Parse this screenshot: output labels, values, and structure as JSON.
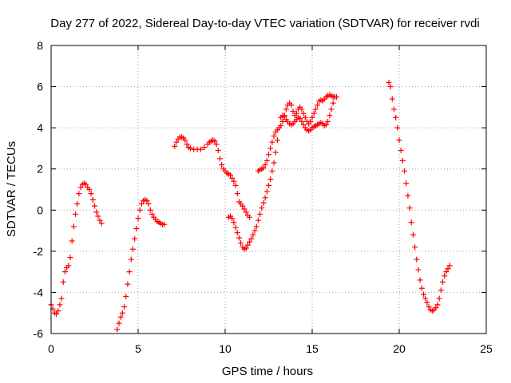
{
  "chart_data": {
    "type": "scatter",
    "title": "Day 277 of 2022, Sidereal Day-to-day VTEC variation (SDTVAR) for receiver rvdi",
    "xlabel": "GPS time / hours",
    "ylabel": "SDTVAR / TECUs",
    "xlim": [
      0,
      25
    ],
    "ylim": [
      -6,
      8
    ],
    "xticks": [
      0,
      5,
      10,
      15,
      20,
      25
    ],
    "yticks": [
      -6,
      -4,
      -2,
      0,
      2,
      4,
      6,
      8
    ],
    "grid": true,
    "marker": "plus",
    "color": "#ff0000",
    "series": [
      {
        "segments": [
          [
            [
              0.0,
              -4.6
            ],
            [
              0.1,
              -4.8
            ],
            [
              0.2,
              -5.0
            ],
            [
              0.3,
              -5.05
            ],
            [
              0.4,
              -4.9
            ],
            [
              0.5,
              -4.6
            ],
            [
              0.6,
              -4.3
            ],
            [
              0.7,
              -3.5
            ],
            [
              0.8,
              -3.0
            ],
            [
              0.9,
              -2.8
            ],
            [
              1.0,
              -2.7
            ],
            [
              1.1,
              -2.3
            ],
            [
              1.2,
              -1.5
            ],
            [
              1.3,
              -0.8
            ],
            [
              1.4,
              -0.2
            ],
            [
              1.5,
              0.3
            ],
            [
              1.6,
              0.8
            ],
            [
              1.7,
              1.1
            ],
            [
              1.8,
              1.25
            ],
            [
              1.9,
              1.3
            ],
            [
              2.0,
              1.25
            ],
            [
              2.1,
              1.1
            ],
            [
              2.2,
              1.0
            ],
            [
              2.3,
              0.8
            ],
            [
              2.4,
              0.5
            ],
            [
              2.5,
              0.2
            ],
            [
              2.6,
              -0.1
            ],
            [
              2.7,
              -0.3
            ],
            [
              2.8,
              -0.5
            ],
            [
              2.9,
              -0.65
            ]
          ],
          [
            [
              3.8,
              -5.8
            ],
            [
              3.9,
              -5.5
            ],
            [
              4.0,
              -5.2
            ],
            [
              4.1,
              -5.0
            ],
            [
              4.2,
              -4.7
            ],
            [
              4.3,
              -4.2
            ],
            [
              4.4,
              -3.6
            ],
            [
              4.5,
              -3.0
            ],
            [
              4.6,
              -2.4
            ],
            [
              4.7,
              -1.9
            ],
            [
              4.8,
              -1.4
            ],
            [
              4.9,
              -0.9
            ],
            [
              5.0,
              -0.4
            ],
            [
              5.1,
              0.0
            ],
            [
              5.2,
              0.3
            ],
            [
              5.3,
              0.45
            ],
            [
              5.4,
              0.5
            ],
            [
              5.5,
              0.45
            ],
            [
              5.6,
              0.3
            ],
            [
              5.7,
              0.0
            ],
            [
              5.8,
              -0.2
            ],
            [
              5.9,
              -0.35
            ],
            [
              6.0,
              -0.45
            ],
            [
              6.1,
              -0.55
            ],
            [
              6.2,
              -0.6
            ],
            [
              6.3,
              -0.65
            ],
            [
              6.4,
              -0.7
            ],
            [
              6.5,
              -0.7
            ]
          ],
          [
            [
              7.1,
              3.1
            ],
            [
              7.2,
              3.3
            ],
            [
              7.3,
              3.45
            ],
            [
              7.4,
              3.55
            ],
            [
              7.5,
              3.55
            ],
            [
              7.6,
              3.5
            ],
            [
              7.7,
              3.4
            ],
            [
              7.8,
              3.2
            ],
            [
              7.9,
              3.05
            ],
            [
              8.0,
              3.0
            ],
            [
              8.2,
              2.95
            ],
            [
              8.4,
              2.95
            ],
            [
              8.6,
              2.95
            ],
            [
              8.8,
              3.05
            ],
            [
              9.0,
              3.2
            ],
            [
              9.1,
              3.3
            ],
            [
              9.2,
              3.35
            ],
            [
              9.3,
              3.4
            ],
            [
              9.4,
              3.35
            ],
            [
              9.5,
              3.2
            ],
            [
              9.6,
              2.9
            ],
            [
              9.7,
              2.5
            ],
            [
              9.8,
              2.2
            ],
            [
              9.9,
              2.0
            ],
            [
              10.0,
              1.9
            ],
            [
              10.1,
              1.8
            ],
            [
              10.2,
              1.75
            ],
            [
              10.3,
              1.7
            ],
            [
              10.4,
              1.55
            ],
            [
              10.5,
              1.4
            ],
            [
              10.6,
              1.2
            ],
            [
              10.7,
              0.8
            ],
            [
              10.8,
              0.4
            ],
            [
              10.9,
              0.3
            ],
            [
              11.0,
              0.2
            ],
            [
              11.1,
              0.05
            ],
            [
              11.2,
              -0.1
            ],
            [
              11.3,
              -0.25
            ],
            [
              11.4,
              -0.35
            ]
          ],
          [
            [
              10.2,
              -0.35
            ],
            [
              10.3,
              -0.3
            ],
            [
              10.4,
              -0.4
            ],
            [
              10.5,
              -0.6
            ],
            [
              10.6,
              -0.85
            ],
            [
              10.7,
              -1.1
            ],
            [
              10.8,
              -1.35
            ],
            [
              10.9,
              -1.6
            ],
            [
              11.0,
              -1.8
            ],
            [
              11.1,
              -1.9
            ],
            [
              11.2,
              -1.85
            ],
            [
              11.3,
              -1.7
            ],
            [
              11.4,
              -1.55
            ],
            [
              11.5,
              -1.4
            ],
            [
              11.6,
              -1.2
            ],
            [
              11.7,
              -1.0
            ],
            [
              11.8,
              -0.8
            ],
            [
              11.9,
              -0.5
            ],
            [
              12.0,
              -0.2
            ],
            [
              12.1,
              0.1
            ],
            [
              12.2,
              0.35
            ],
            [
              12.3,
              0.6
            ],
            [
              12.4,
              0.9
            ],
            [
              12.5,
              1.2
            ],
            [
              12.6,
              1.5
            ],
            [
              12.7,
              1.9
            ],
            [
              12.8,
              2.3
            ],
            [
              12.9,
              2.8
            ],
            [
              13.0,
              3.4
            ],
            [
              13.1,
              4.0
            ],
            [
              13.2,
              4.5
            ],
            [
              13.3,
              4.6
            ],
            [
              13.4,
              4.55
            ],
            [
              13.5,
              4.4
            ],
            [
              13.6,
              4.3
            ],
            [
              13.7,
              4.2
            ],
            [
              13.8,
              4.15
            ],
            [
              13.9,
              4.2
            ],
            [
              14.0,
              4.3
            ],
            [
              14.1,
              4.4
            ],
            [
              14.2,
              4.5
            ],
            [
              14.3,
              4.45
            ],
            [
              14.4,
              4.3
            ],
            [
              14.5,
              4.15
            ],
            [
              14.6,
              4.0
            ],
            [
              14.7,
              3.9
            ],
            [
              14.8,
              3.85
            ],
            [
              14.9,
              3.9
            ],
            [
              15.0,
              4.0
            ],
            [
              15.1,
              4.05
            ],
            [
              15.2,
              4.1
            ],
            [
              15.3,
              4.15
            ],
            [
              15.4,
              4.2
            ],
            [
              15.5,
              4.25
            ],
            [
              15.6,
              4.2
            ],
            [
              15.7,
              4.1
            ],
            [
              15.8,
              4.15
            ],
            [
              15.9,
              4.3
            ],
            [
              16.0,
              4.6
            ],
            [
              16.1,
              4.9
            ],
            [
              16.2,
              5.2
            ],
            [
              16.3,
              5.5
            ]
          ],
          [
            [
              11.9,
              1.9
            ],
            [
              12.0,
              1.95
            ],
            [
              12.1,
              2.0
            ],
            [
              12.2,
              2.05
            ],
            [
              12.3,
              2.2
            ],
            [
              12.4,
              2.4
            ],
            [
              12.5,
              2.7
            ],
            [
              12.6,
              3.0
            ],
            [
              12.7,
              3.3
            ],
            [
              12.8,
              3.6
            ],
            [
              12.9,
              3.8
            ],
            [
              13.0,
              3.9
            ],
            [
              13.1,
              4.0
            ],
            [
              13.2,
              4.1
            ],
            [
              13.3,
              4.3
            ],
            [
              13.4,
              4.6
            ],
            [
              13.5,
              4.9
            ],
            [
              13.6,
              5.1
            ],
            [
              13.7,
              5.2
            ],
            [
              13.8,
              5.1
            ],
            [
              13.9,
              4.8
            ],
            [
              14.0,
              4.6
            ],
            [
              14.1,
              4.7
            ],
            [
              14.2,
              4.9
            ],
            [
              14.3,
              5.0
            ],
            [
              14.4,
              4.9
            ],
            [
              14.5,
              4.7
            ],
            [
              14.6,
              4.5
            ],
            [
              14.7,
              4.3
            ],
            [
              14.8,
              4.2
            ],
            [
              14.9,
              4.3
            ],
            [
              15.0,
              4.5
            ],
            [
              15.1,
              4.7
            ],
            [
              15.2,
              4.9
            ],
            [
              15.3,
              5.1
            ],
            [
              15.4,
              5.3
            ],
            [
              15.5,
              5.35
            ],
            [
              15.6,
              5.3
            ],
            [
              15.7,
              5.4
            ],
            [
              15.8,
              5.5
            ],
            [
              15.9,
              5.55
            ],
            [
              16.0,
              5.6
            ],
            [
              16.1,
              5.55
            ],
            [
              16.2,
              5.5
            ],
            [
              16.3,
              5.5
            ],
            [
              16.4,
              5.5
            ]
          ],
          [
            [
              19.4,
              6.2
            ],
            [
              19.5,
              6.0
            ],
            [
              19.6,
              5.4
            ],
            [
              19.7,
              4.9
            ],
            [
              19.8,
              4.5
            ],
            [
              19.9,
              4.0
            ],
            [
              20.0,
              3.4
            ],
            [
              20.1,
              2.9
            ],
            [
              20.2,
              2.4
            ],
            [
              20.3,
              1.9
            ],
            [
              20.4,
              1.3
            ],
            [
              20.5,
              0.7
            ],
            [
              20.6,
              0.1
            ],
            [
              20.7,
              -0.6
            ],
            [
              20.8,
              -1.2
            ],
            [
              20.9,
              -1.8
            ],
            [
              21.0,
              -2.4
            ],
            [
              21.1,
              -2.9
            ],
            [
              21.2,
              -3.4
            ],
            [
              21.3,
              -3.8
            ],
            [
              21.4,
              -4.1
            ],
            [
              21.5,
              -4.3
            ],
            [
              21.6,
              -4.5
            ],
            [
              21.7,
              -4.7
            ],
            [
              21.8,
              -4.85
            ],
            [
              21.9,
              -4.9
            ],
            [
              22.0,
              -4.85
            ],
            [
              22.1,
              -4.75
            ],
            [
              22.2,
              -4.6
            ],
            [
              22.3,
              -4.3
            ],
            [
              22.4,
              -3.9
            ],
            [
              22.5,
              -3.5
            ],
            [
              22.6,
              -3.2
            ],
            [
              22.7,
              -3.0
            ],
            [
              22.8,
              -2.85
            ],
            [
              22.9,
              -2.7
            ]
          ]
        ]
      }
    ]
  }
}
